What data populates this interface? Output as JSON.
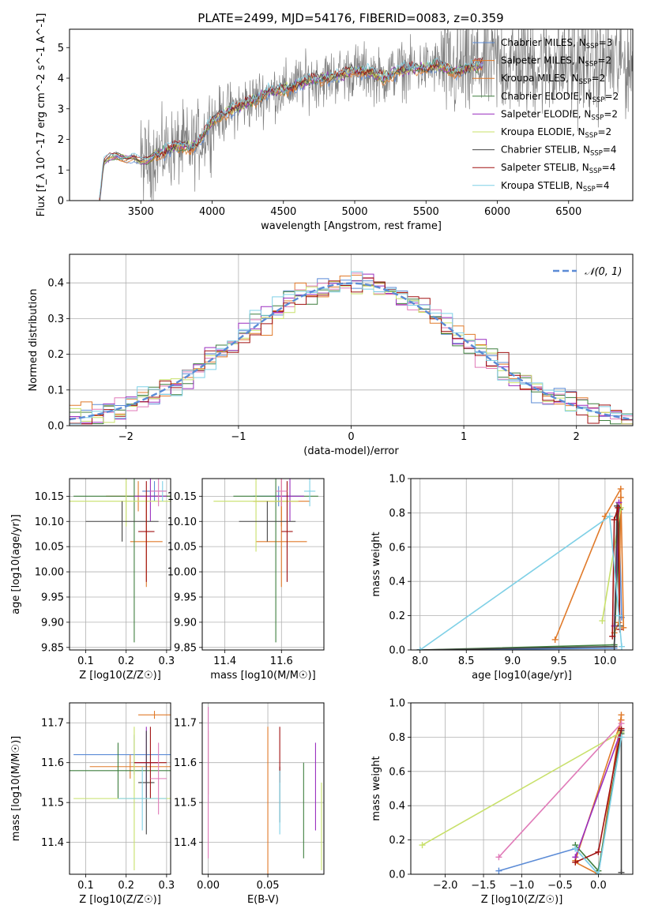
{
  "figure_title": "PLATE=2499, MJD=54176, FIBERID=0083, z=0.359",
  "colors": {
    "chabrier_miles": "#5b8bd6",
    "salpeter_miles": "#e07a2a",
    "kroupa_miles": "#e07a2a",
    "chabrier_elodie": "#3f7f3f",
    "salpeter_elodie": "#9a2fbf",
    "kroupa_elodie": "#c8e06a",
    "chabrier_stelib": "#444444",
    "salpeter_stelib": "#a01010",
    "kroupa_stelib": "#7fd0e6",
    "pink": "#e07ab8",
    "data_grey": "#808080",
    "normal_curve": "#5b8bd6"
  },
  "chart_data": [
    {
      "panel": "spectrum",
      "type": "line",
      "xlabel": "wavelength [Angstrom, rest frame]",
      "ylabel": "Flux [f_λ 10^-17 erg cm^-2 s^-1 A^-1]",
      "xlim": [
        3000,
        6950
      ],
      "ylim": [
        0,
        5.6
      ],
      "xticks": [
        "3500",
        "4000",
        "4500",
        "5000",
        "5500",
        "6000",
        "6500"
      ],
      "yticks": [
        "0",
        "1",
        "2",
        "3",
        "4",
        "5"
      ],
      "legend_position": "top-right",
      "legend": [
        {
          "label": "Chabrier MILES, N",
          "sub": "SSP",
          "suffix": "=3",
          "color": "#5b8bd6"
        },
        {
          "label": "Salpeter MILES, N",
          "sub": "SSP",
          "suffix": "=2",
          "color": "#e07a2a"
        },
        {
          "label": "Kroupa MILES, N",
          "sub": "SSP",
          "suffix": "=2",
          "color": "#e07a2a"
        },
        {
          "label": "Chabrier ELODIE, N",
          "sub": "SSP",
          "suffix": "=2",
          "color": "#3f7f3f"
        },
        {
          "label": "Salpeter ELODIE, N",
          "sub": "SSP",
          "suffix": "=2",
          "color": "#9a2fbf"
        },
        {
          "label": "Kroupa ELODIE, N",
          "sub": "SSP",
          "suffix": "=2",
          "color": "#c8e06a"
        },
        {
          "label": "Chabrier STELIB, N",
          "sub": "SSP",
          "suffix": "=4",
          "color": "#444444"
        },
        {
          "label": "Salpeter STELIB, N",
          "sub": "SSP",
          "suffix": "=4",
          "color": "#a01010"
        },
        {
          "label": "Kroupa STELIB, N",
          "sub": "SSP",
          "suffix": "=4",
          "color": "#7fd0e6"
        }
      ],
      "model_shape": {
        "x": [
          3210,
          3240,
          3280,
          3330,
          3400,
          3450,
          3500,
          3550,
          3600,
          3650,
          3700,
          3750,
          3800,
          3850,
          3900,
          3950,
          4000,
          4100,
          4200,
          4300,
          4400,
          4500,
          4600,
          4700,
          4800,
          4900,
          5000,
          5100,
          5200,
          5300,
          5400,
          5500,
          5600,
          5700,
          5800,
          5900
        ],
        "y": [
          0.0,
          1.25,
          1.4,
          1.45,
          1.38,
          1.42,
          1.25,
          1.3,
          1.5,
          1.55,
          1.7,
          1.75,
          1.8,
          1.7,
          1.9,
          2.2,
          2.6,
          2.9,
          3.1,
          3.3,
          3.55,
          3.6,
          3.8,
          3.95,
          4.0,
          4.1,
          4.25,
          4.2,
          4.0,
          4.25,
          4.3,
          4.35,
          4.4,
          4.2,
          4.3,
          4.5
        ]
      }
    },
    {
      "panel": "residuals",
      "type": "histogram",
      "xlabel": "(data-model)/error",
      "ylabel": "Normed distribution",
      "xlim": [
        -2.5,
        2.5
      ],
      "ylim": [
        0,
        0.48
      ],
      "xticks": [
        "−2",
        "−1",
        "0",
        "1",
        "2"
      ],
      "yticks": [
        "0.0",
        "0.1",
        "0.2",
        "0.3",
        "0.4"
      ],
      "legend_label": "𝒩(0, 1)",
      "legend_position": "top-right"
    },
    {
      "panel": "age_vs_Z",
      "type": "scatter",
      "xlabel": "Z [log10(Z/Z☉)]",
      "ylabel": "age  [log10(age/yr)]",
      "xlim": [
        0.06,
        0.31
      ],
      "ylim": [
        9.845,
        10.185
      ],
      "xticks": [
        "0.1",
        "0.2",
        "0.3"
      ],
      "yticks": [
        "9.85",
        "9.90",
        "9.95",
        "10.00",
        "10.05",
        "10.10",
        "10.15"
      ]
    },
    {
      "panel": "age_vs_mass",
      "type": "scatter",
      "xlabel": "mass [log10(M/M☉)]",
      "xlim": [
        11.32,
        11.75
      ],
      "ylim": [
        9.845,
        10.185
      ],
      "xticks": [
        "11.4",
        "11.6"
      ],
      "yticks": [
        "9.85",
        "9.90",
        "9.95",
        "10.00",
        "10.05",
        "10.10",
        "10.15"
      ]
    },
    {
      "panel": "weight_vs_age",
      "type": "line",
      "xlabel": "age  [log10(age/yr)]",
      "ylabel": "mass weight",
      "xlim": [
        7.9,
        10.3
      ],
      "ylim": [
        0,
        1.0
      ],
      "xticks": [
        "8.0",
        "8.5",
        "9.0",
        "9.5",
        "10.0"
      ],
      "yticks": [
        "0.0",
        "0.2",
        "0.4",
        "0.6",
        "0.8",
        "1.0"
      ]
    },
    {
      "panel": "mass_vs_Z",
      "type": "scatter",
      "xlabel": "Z [log10(Z/Z☉)]",
      "ylabel": "mass [log10(M/M☉)]",
      "xlim": [
        0.06,
        0.31
      ],
      "ylim": [
        11.32,
        11.75
      ],
      "xticks": [
        "0.1",
        "0.2",
        "0.3"
      ],
      "yticks": [
        "11.4",
        "11.5",
        "11.6",
        "11.7"
      ]
    },
    {
      "panel": "mass_vs_ebv",
      "type": "scatter",
      "xlabel": "E(B-V)",
      "xlim": [
        -0.005,
        0.097
      ],
      "ylim": [
        11.32,
        11.75
      ],
      "xticks": [
        "0.00",
        "0.05"
      ],
      "yticks": [
        "11.4",
        "11.5",
        "11.6",
        "11.7"
      ]
    },
    {
      "panel": "weight_vs_Z",
      "type": "line",
      "xlabel": "Z [log10(Z/Z☉)]",
      "ylabel": "mass weight",
      "xlim": [
        -2.45,
        0.45
      ],
      "ylim": [
        0,
        1.0
      ],
      "xticks": [
        "−2.0",
        "−1.5",
        "−1.0",
        "−0.5",
        "0.0"
      ],
      "yticks": [
        "0.0",
        "0.2",
        "0.4",
        "0.6",
        "0.8",
        "1.0"
      ]
    }
  ]
}
